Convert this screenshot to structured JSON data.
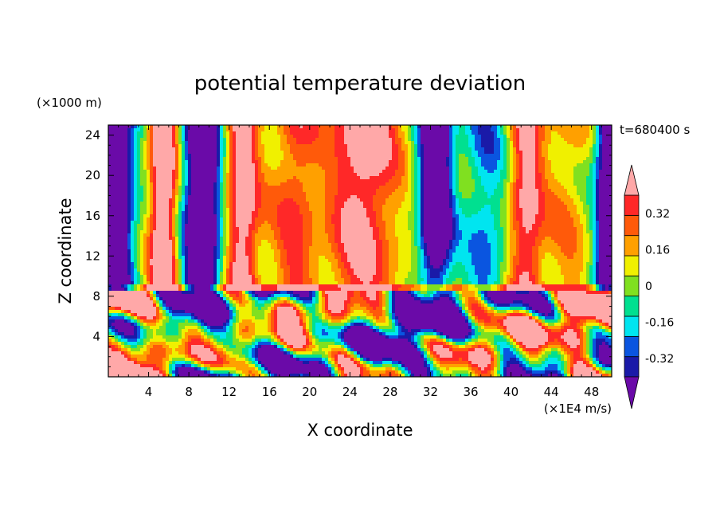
{
  "chart_data": {
    "type": "heatmap",
    "title": "potential temperature deviation",
    "xlabel": "X coordinate",
    "ylabel": "Z coordinate",
    "x_unit": "(×1E4 m/s)",
    "y_unit": "(×1000 m)",
    "time_label": "t=680400 s",
    "xlim": [
      0,
      50
    ],
    "ylim": [
      0,
      25
    ],
    "x_ticks": [
      4,
      8,
      12,
      16,
      20,
      24,
      28,
      32,
      36,
      40,
      44,
      48
    ],
    "y_ticks": [
      4,
      8,
      12,
      16,
      20,
      24
    ],
    "colorbar": {
      "levels": [
        -0.4,
        -0.32,
        -0.24,
        -0.16,
        -0.08,
        0,
        0.08,
        0.16,
        0.24,
        0.32,
        0.4
      ],
      "tick_labels": [
        "-0.32",
        "-0.16",
        "0",
        "0.16",
        "0.32"
      ],
      "tick_values": [
        -0.32,
        -0.16,
        0,
        0.16,
        0.32
      ],
      "extend": "both",
      "colors": [
        "#6a0aa8",
        "#1a1aa8",
        "#0a55e0",
        "#00e5f0",
        "#00e090",
        "#80e020",
        "#f0f000",
        "#ffa000",
        "#ff5a0a",
        "#ff2828",
        "#ffa8a8"
      ]
    }
  }
}
